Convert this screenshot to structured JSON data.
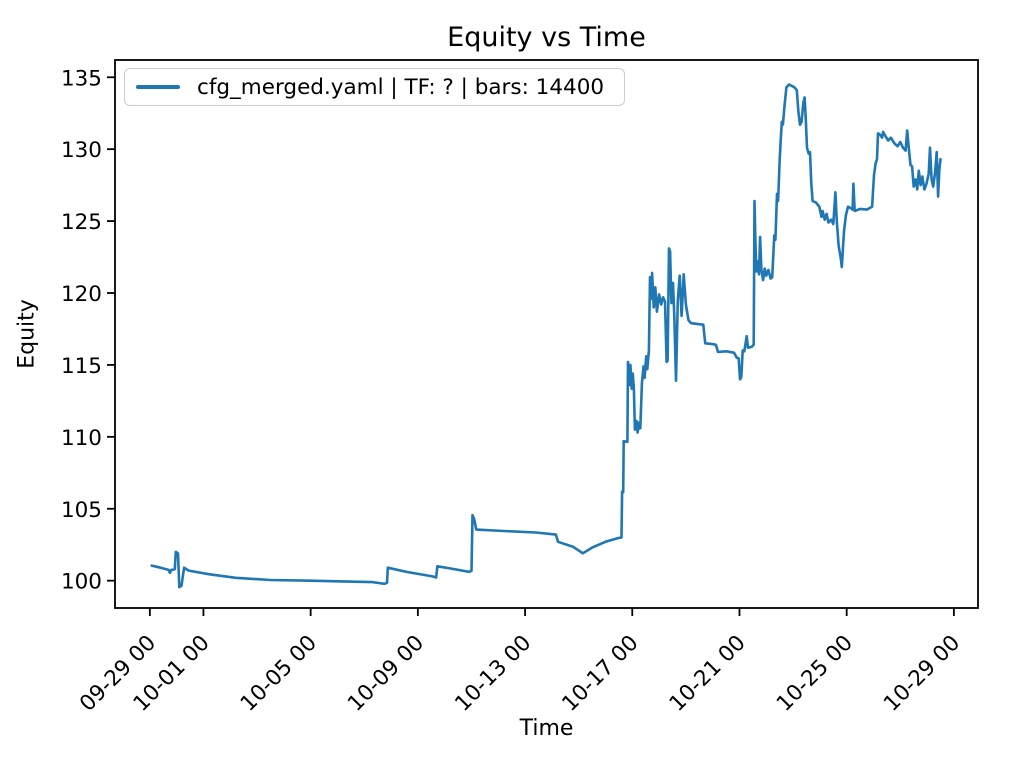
{
  "colors": {
    "line": "#1f77b4",
    "text": "#000000",
    "background": "#ffffff",
    "legend_border": "#cccccc",
    "axis": "#000000"
  },
  "chart_data": {
    "type": "line",
    "title": "Equity vs Time",
    "xlabel": "Time",
    "ylabel": "Equity",
    "grid": false,
    "legend_position": "upper left",
    "xlim_days": [
      -1.3,
      30.9
    ],
    "ylim": [
      98.1,
      136.2
    ],
    "x_ticks": [
      {
        "day": 0,
        "label": "09-29 00"
      },
      {
        "day": 2,
        "label": "10-01 00"
      },
      {
        "day": 6,
        "label": "10-05 00"
      },
      {
        "day": 10,
        "label": "10-09 00"
      },
      {
        "day": 14,
        "label": "10-13 00"
      },
      {
        "day": 18,
        "label": "10-17 00"
      },
      {
        "day": 22,
        "label": "10-21 00"
      },
      {
        "day": 26,
        "label": "10-25 00"
      },
      {
        "day": 30,
        "label": "10-29 00"
      }
    ],
    "y_ticks": [
      100,
      105,
      110,
      115,
      120,
      125,
      130,
      135
    ],
    "x_tick_rotation_deg": 45,
    "series": [
      {
        "name": "cfg_merged.yaml | TF: ? | bars: 14400",
        "color": "#1f77b4",
        "points": [
          [
            0.07,
            101.05
          ],
          [
            0.4,
            100.9
          ],
          [
            0.7,
            100.75
          ],
          [
            0.75,
            100.55
          ],
          [
            0.8,
            100.75
          ],
          [
            0.93,
            100.8
          ],
          [
            0.97,
            102.0
          ],
          [
            1.05,
            101.9
          ],
          [
            1.1,
            99.55
          ],
          [
            1.18,
            99.65
          ],
          [
            1.28,
            100.9
          ],
          [
            1.45,
            100.7
          ],
          [
            2.2,
            100.45
          ],
          [
            3.2,
            100.2
          ],
          [
            4.5,
            100.05
          ],
          [
            6.0,
            100.0
          ],
          [
            7.2,
            99.95
          ],
          [
            8.3,
            99.9
          ],
          [
            8.75,
            99.78
          ],
          [
            8.85,
            99.85
          ],
          [
            8.88,
            100.9
          ],
          [
            9.6,
            100.6
          ],
          [
            10.55,
            100.3
          ],
          [
            10.68,
            100.22
          ],
          [
            10.73,
            101.0
          ],
          [
            11.2,
            100.85
          ],
          [
            11.9,
            100.62
          ],
          [
            12.0,
            100.68
          ],
          [
            12.04,
            104.55
          ],
          [
            12.1,
            104.3
          ],
          [
            12.18,
            103.55
          ],
          [
            13.2,
            103.45
          ],
          [
            14.4,
            103.35
          ],
          [
            15.15,
            103.2
          ],
          [
            15.23,
            102.7
          ],
          [
            15.8,
            102.35
          ],
          [
            16.16,
            101.9
          ],
          [
            16.5,
            102.3
          ],
          [
            17.0,
            102.7
          ],
          [
            17.45,
            102.95
          ],
          [
            17.6,
            103.0
          ],
          [
            17.62,
            106.2
          ],
          [
            17.66,
            106.15
          ],
          [
            17.68,
            109.7
          ],
          [
            17.82,
            109.65
          ],
          [
            17.84,
            115.2
          ],
          [
            17.89,
            113.6
          ],
          [
            17.93,
            115.0
          ],
          [
            17.98,
            113.35
          ],
          [
            18.02,
            114.4
          ],
          [
            18.06,
            113.3
          ],
          [
            18.1,
            110.5
          ],
          [
            18.16,
            111.1
          ],
          [
            18.2,
            110.3
          ],
          [
            18.26,
            111.0
          ],
          [
            18.3,
            110.6
          ],
          [
            18.36,
            113.7
          ],
          [
            18.42,
            114.9
          ],
          [
            18.46,
            114.1
          ],
          [
            18.52,
            115.6
          ],
          [
            18.56,
            114.7
          ],
          [
            18.62,
            116.0
          ],
          [
            18.66,
            121.1
          ],
          [
            18.7,
            119.6
          ],
          [
            18.74,
            121.4
          ],
          [
            18.8,
            119.0
          ],
          [
            18.86,
            120.4
          ],
          [
            18.92,
            118.7
          ],
          [
            19.0,
            119.9
          ],
          [
            19.08,
            119.2
          ],
          [
            19.15,
            119.7
          ],
          [
            19.22,
            119.4
          ],
          [
            19.28,
            115.2
          ],
          [
            19.32,
            115.3
          ],
          [
            19.37,
            123.1
          ],
          [
            19.41,
            122.9
          ],
          [
            19.46,
            119.3
          ],
          [
            19.52,
            120.7
          ],
          [
            19.57,
            118.4
          ],
          [
            19.63,
            113.9
          ],
          [
            19.7,
            119.5
          ],
          [
            19.77,
            121.2
          ],
          [
            19.84,
            118.4
          ],
          [
            19.92,
            121.3
          ],
          [
            20.0,
            119.2
          ],
          [
            20.1,
            118.1
          ],
          [
            20.2,
            117.9
          ],
          [
            20.65,
            117.8
          ],
          [
            20.72,
            116.5
          ],
          [
            21.0,
            116.45
          ],
          [
            21.12,
            116.4
          ],
          [
            21.2,
            115.9
          ],
          [
            21.5,
            115.95
          ],
          [
            21.8,
            115.85
          ],
          [
            21.9,
            115.5
          ],
          [
            21.97,
            115.45
          ],
          [
            22.02,
            114.0
          ],
          [
            22.07,
            114.15
          ],
          [
            22.12,
            116.0
          ],
          [
            22.18,
            115.95
          ],
          [
            22.27,
            117.0
          ],
          [
            22.32,
            116.2
          ],
          [
            22.45,
            116.25
          ],
          [
            22.53,
            116.4
          ],
          [
            22.56,
            126.4
          ],
          [
            22.6,
            123.3
          ],
          [
            22.63,
            121.5
          ],
          [
            22.68,
            122.2
          ],
          [
            22.73,
            121.3
          ],
          [
            22.77,
            123.9
          ],
          [
            22.82,
            121.6
          ],
          [
            22.88,
            120.9
          ],
          [
            22.94,
            121.7
          ],
          [
            23.0,
            121.2
          ],
          [
            23.08,
            121.6
          ],
          [
            23.16,
            121.0
          ],
          [
            23.22,
            121.1
          ],
          [
            23.3,
            124.0
          ],
          [
            23.34,
            123.7
          ],
          [
            23.4,
            126.9
          ],
          [
            23.44,
            126.4
          ],
          [
            23.5,
            129.3
          ],
          [
            23.54,
            130.6
          ],
          [
            23.58,
            131.9
          ],
          [
            23.62,
            131.7
          ],
          [
            23.68,
            133.0
          ],
          [
            23.75,
            134.3
          ],
          [
            23.85,
            134.5
          ],
          [
            23.95,
            134.4
          ],
          [
            24.05,
            134.3
          ],
          [
            24.14,
            134.1
          ],
          [
            24.2,
            132.6
          ],
          [
            24.26,
            131.7
          ],
          [
            24.32,
            131.9
          ],
          [
            24.38,
            133.2
          ],
          [
            24.43,
            133.6
          ],
          [
            24.47,
            132.2
          ],
          [
            24.52,
            130.1
          ],
          [
            24.58,
            129.7
          ],
          [
            24.63,
            129.8
          ],
          [
            24.68,
            127.6
          ],
          [
            24.73,
            126.4
          ],
          [
            24.85,
            126.3
          ],
          [
            24.98,
            126.0
          ],
          [
            25.06,
            125.3
          ],
          [
            25.1,
            125.7
          ],
          [
            25.18,
            125.1
          ],
          [
            25.25,
            125.5
          ],
          [
            25.32,
            124.9
          ],
          [
            25.42,
            125.1
          ],
          [
            25.5,
            124.8
          ],
          [
            25.58,
            127.0
          ],
          [
            25.63,
            125.0
          ],
          [
            25.7,
            123.3
          ],
          [
            25.78,
            122.4
          ],
          [
            25.82,
            121.8
          ],
          [
            25.9,
            124.3
          ],
          [
            25.97,
            125.4
          ],
          [
            26.05,
            126.0
          ],
          [
            26.15,
            125.9
          ],
          [
            26.22,
            125.8
          ],
          [
            26.25,
            127.6
          ],
          [
            26.3,
            125.7
          ],
          [
            26.5,
            125.85
          ],
          [
            26.75,
            125.8
          ],
          [
            26.95,
            126.0
          ],
          [
            27.02,
            128.2
          ],
          [
            27.08,
            129.0
          ],
          [
            27.13,
            129.3
          ],
          [
            27.17,
            131.1
          ],
          [
            27.25,
            131.0
          ],
          [
            27.32,
            130.8
          ],
          [
            27.36,
            131.2
          ],
          [
            27.45,
            130.9
          ],
          [
            27.55,
            130.6
          ],
          [
            27.65,
            130.8
          ],
          [
            27.78,
            130.4
          ],
          [
            27.9,
            130.2
          ],
          [
            28.0,
            130.5
          ],
          [
            28.1,
            130.1
          ],
          [
            28.2,
            129.9
          ],
          [
            28.26,
            131.3
          ],
          [
            28.32,
            130.0
          ],
          [
            28.38,
            128.9
          ],
          [
            28.44,
            128.8
          ],
          [
            28.5,
            127.4
          ],
          [
            28.57,
            127.9
          ],
          [
            28.63,
            127.2
          ],
          [
            28.69,
            128.5
          ],
          [
            28.76,
            127.5
          ],
          [
            28.82,
            128.1
          ],
          [
            28.9,
            127.2
          ],
          [
            28.98,
            127.6
          ],
          [
            29.06,
            128.3
          ],
          [
            29.11,
            130.1
          ],
          [
            29.17,
            127.9
          ],
          [
            29.23,
            127.4
          ],
          [
            29.3,
            128.4
          ],
          [
            29.36,
            129.8
          ],
          [
            29.41,
            126.7
          ],
          [
            29.46,
            128.6
          ],
          [
            29.5,
            129.3
          ]
        ]
      }
    ]
  }
}
